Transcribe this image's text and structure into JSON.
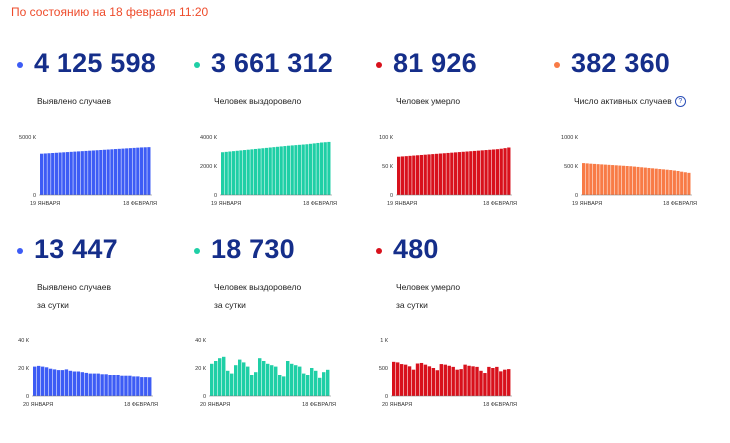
{
  "header": {
    "timestamp": "По состоянию на 18 февраля 11:20"
  },
  "cards": [
    {
      "value": "4 125 598",
      "label1": "Выявлено случаев",
      "label2": "",
      "color": "#3d5cf5",
      "chart_index": 0
    },
    {
      "value": "3 661 312",
      "label1": "Человек выздоровело",
      "label2": "",
      "color": "#1fcfa6",
      "chart_index": 1
    },
    {
      "value": "81 926",
      "label1": "Человек умерло",
      "label2": "",
      "color": "#d8111c",
      "chart_index": 2
    },
    {
      "value": "382 360",
      "label1": "Число активных случаев",
      "label2": "",
      "color": "#f87b46",
      "chart_index": 3,
      "help_icon": "?"
    },
    {
      "value": "13 447",
      "label1": "Выявлено случаев",
      "label2": "за сутки",
      "color": "#3d5cf5",
      "chart_index": 4
    },
    {
      "value": "18 730",
      "label1": "Человек выздоровело",
      "label2": "за сутки",
      "color": "#1fcfa6",
      "chart_index": 5
    },
    {
      "value": "480",
      "label1": "Человек умерло",
      "label2": "за сутки",
      "color": "#d8111c",
      "chart_index": 6
    }
  ],
  "chart_data": [
    {
      "type": "bar",
      "color": "#3d5cf5",
      "ylim": [
        0,
        5000
      ],
      "y_tick_labels": [
        "5000 К",
        "0"
      ],
      "x_tick_labels": [
        "19 ЯНВАРЯ",
        "18 ФЕВРАЛЯ"
      ],
      "values": [
        3560,
        3580,
        3600,
        3620,
        3640,
        3660,
        3680,
        3700,
        3720,
        3740,
        3760,
        3780,
        3800,
        3820,
        3840,
        3860,
        3880,
        3900,
        3920,
        3940,
        3960,
        3980,
        4000,
        4020,
        4040,
        4060,
        4080,
        4100,
        4113,
        4126
      ]
    },
    {
      "type": "bar",
      "color": "#1fcfa6",
      "ylim": [
        0,
        4000
      ],
      "y_tick_labels": [
        "4000 К",
        "2000 К",
        "0"
      ],
      "x_tick_labels": [
        "19 ЯНВАРЯ",
        "18 ФЕВРАЛЯ"
      ],
      "values": [
        2950,
        2975,
        3000,
        3025,
        3050,
        3075,
        3100,
        3125,
        3150,
        3175,
        3200,
        3225,
        3250,
        3275,
        3300,
        3325,
        3350,
        3375,
        3400,
        3420,
        3440,
        3460,
        3480,
        3500,
        3530,
        3560,
        3590,
        3620,
        3640,
        3661
      ]
    },
    {
      "type": "bar",
      "color": "#d8111c",
      "ylim": [
        0,
        100
      ],
      "y_tick_labels": [
        "100 К",
        "50 К",
        "0"
      ],
      "x_tick_labels": [
        "19 ЯНВАРЯ",
        "18 ФЕВРАЛЯ"
      ],
      "values": [
        66,
        66.5,
        67,
        67.5,
        68,
        68.5,
        69,
        69.5,
        70,
        70.5,
        71,
        71.5,
        72,
        72.5,
        73,
        73.5,
        74,
        74.5,
        75,
        75.5,
        76,
        76.5,
        77,
        77.5,
        78,
        78.5,
        79,
        79.8,
        80.8,
        81.9
      ]
    },
    {
      "type": "bar",
      "color": "#f87b46",
      "ylim": [
        0,
        1000
      ],
      "y_tick_labels": [
        "1000 К",
        "500 К",
        "0"
      ],
      "x_tick_labels": [
        "19 ЯНВАРЯ",
        "18 ФЕВРАЛЯ"
      ],
      "values": [
        550,
        545,
        540,
        536,
        532,
        528,
        524,
        520,
        516,
        512,
        508,
        504,
        500,
        496,
        490,
        484,
        478,
        472,
        466,
        460,
        454,
        448,
        442,
        436,
        430,
        422,
        414,
        402,
        392,
        382
      ]
    },
    {
      "type": "bar",
      "color": "#3d5cf5",
      "ylim": [
        0,
        40
      ],
      "y_tick_labels": [
        "40 К",
        "20 К",
        "0"
      ],
      "x_tick_labels": [
        "20 ЯНВАРЯ",
        "18 ФЕВРАЛЯ"
      ],
      "values": [
        21,
        21.5,
        21,
        20.5,
        19.5,
        19,
        18.5,
        18.5,
        19,
        18,
        17.5,
        17.5,
        17,
        16.5,
        16,
        16,
        16,
        15.5,
        15.5,
        15,
        15,
        15,
        14.5,
        14.5,
        14.5,
        14,
        14,
        13.5,
        13.5,
        13.4
      ]
    },
    {
      "type": "bar",
      "color": "#1fcfa6",
      "ylim": [
        0,
        40
      ],
      "y_tick_labels": [
        "40 К",
        "20 К",
        "0"
      ],
      "x_tick_labels": [
        "20 ЯНВАРЯ",
        "18 ФЕВРАЛЯ"
      ],
      "values": [
        23,
        25,
        27,
        28,
        18,
        16,
        22,
        26,
        24,
        21,
        15,
        17,
        27,
        25,
        23,
        22,
        21,
        15,
        14,
        25,
        23,
        22,
        21,
        16,
        15,
        20,
        18,
        13,
        17,
        18.7
      ]
    },
    {
      "type": "bar",
      "color": "#d8111c",
      "ylim": [
        0,
        1000
      ],
      "y_tick_labels": [
        "1 К",
        "500",
        "0"
      ],
      "x_tick_labels": [
        "20 ЯНВАРЯ",
        "18 ФЕВРАЛЯ"
      ],
      "values": [
        610,
        600,
        570,
        560,
        530,
        470,
        580,
        590,
        560,
        530,
        500,
        460,
        570,
        560,
        540,
        520,
        470,
        480,
        560,
        540,
        530,
        520,
        450,
        410,
        520,
        500,
        520,
        440,
        470,
        480
      ]
    }
  ]
}
